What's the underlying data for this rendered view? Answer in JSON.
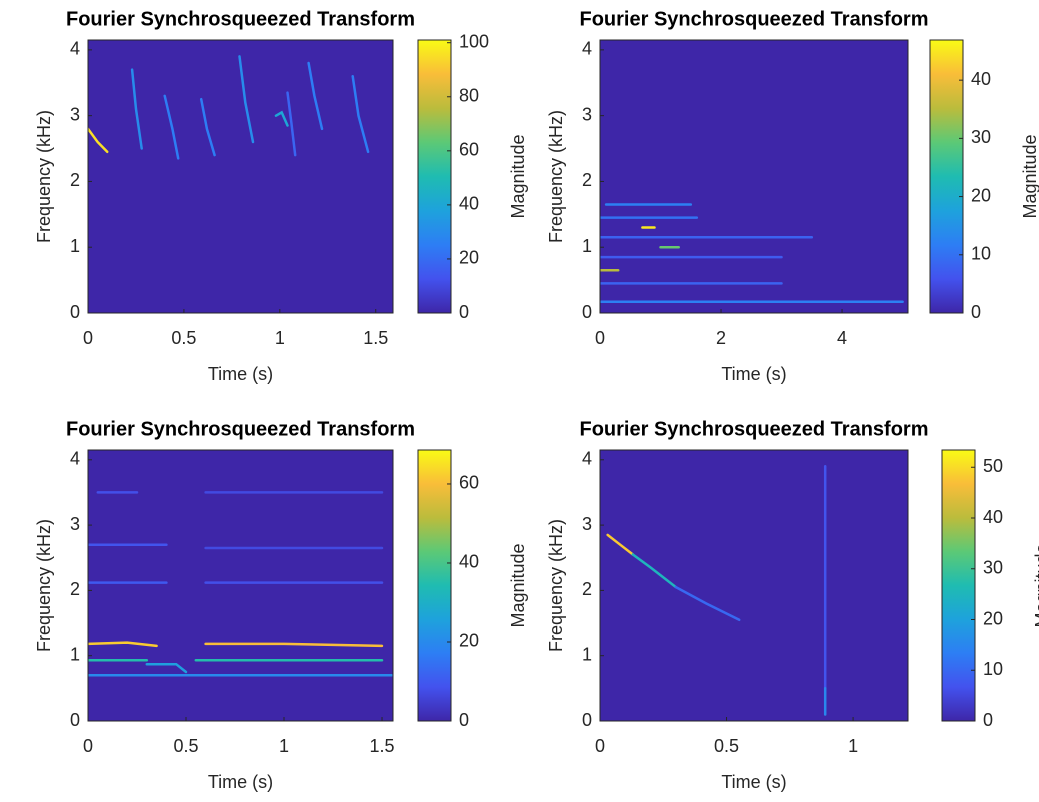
{
  "chart_data": [
    {
      "type": "spectrogram",
      "title": "Fourier Synchrosqueezed Transform",
      "xlabel": "Time (s)",
      "ylabel": "Frequency (kHz)",
      "clabel": "Magnitude",
      "xlim": [
        0,
        1.59
      ],
      "xticks": [
        0,
        0.5,
        1,
        1.5
      ],
      "ylim": [
        0,
        4.15
      ],
      "yticks": [
        0,
        1,
        2,
        3,
        4
      ],
      "clim": [
        0,
        101
      ],
      "cticks": [
        0,
        20,
        40,
        60,
        80,
        100
      ],
      "colormap": [
        "#3e26a8",
        "#4352ee",
        "#2d7ef4",
        "#1ea2dc",
        "#1fbcb1",
        "#5cc976",
        "#bbbc3c",
        "#f9bd39",
        "#f9fb15"
      ],
      "ridges": [
        {
          "x": [
            0,
            0.05,
            0.1
          ],
          "y": [
            2.8,
            2.6,
            2.45
          ],
          "magnitude": 95
        },
        {
          "x": [
            0.23,
            0.25,
            0.28
          ],
          "y": [
            3.7,
            3.1,
            2.5
          ],
          "magnitude": 30
        },
        {
          "x": [
            0.4,
            0.44,
            0.47
          ],
          "y": [
            3.3,
            2.8,
            2.35
          ],
          "magnitude": 25
        },
        {
          "x": [
            0.59,
            0.62,
            0.66
          ],
          "y": [
            3.25,
            2.8,
            2.4
          ],
          "magnitude": 25
        },
        {
          "x": [
            0.79,
            0.82,
            0.86
          ],
          "y": [
            3.9,
            3.2,
            2.6
          ],
          "magnitude": 30
        },
        {
          "x": [
            0.98,
            1.01,
            1.04
          ],
          "y": [
            3.0,
            3.05,
            2.85
          ],
          "magnitude": 40
        },
        {
          "x": [
            1.04,
            1.06,
            1.08
          ],
          "y": [
            3.35,
            2.9,
            2.4
          ],
          "magnitude": 18
        },
        {
          "x": [
            1.15,
            1.18,
            1.22
          ],
          "y": [
            3.8,
            3.3,
            2.8
          ],
          "magnitude": 25
        },
        {
          "x": [
            1.38,
            1.41,
            1.46
          ],
          "y": [
            3.6,
            3.0,
            2.45
          ],
          "magnitude": 25
        }
      ]
    },
    {
      "type": "spectrogram",
      "title": "Fourier Synchrosqueezed Transform",
      "xlabel": "Time (s)",
      "ylabel": "Frequency (kHz)",
      "clabel": "Magnitude",
      "xlim": [
        0,
        5.09
      ],
      "xticks": [
        0,
        2,
        4
      ],
      "ylim": [
        0,
        4.15
      ],
      "yticks": [
        0,
        1,
        2,
        3,
        4
      ],
      "clim": [
        0,
        46.9
      ],
      "cticks": [
        0,
        10,
        20,
        30,
        40
      ],
      "colormap": [
        "#3e26a8",
        "#4352ee",
        "#2d7ef4",
        "#1ea2dc",
        "#1fbcb1",
        "#5cc976",
        "#bbbc3c",
        "#f9bd39",
        "#f9fb15"
      ],
      "ridges": [
        {
          "x": [
            0,
            2.5,
            5
          ],
          "y": [
            0.17,
            0.17,
            0.17
          ],
          "magnitude": 12
        },
        {
          "x": [
            0,
            1.5,
            3
          ],
          "y": [
            0.45,
            0.45,
            0.45
          ],
          "magnitude": 8
        },
        {
          "x": [
            0,
            0.15,
            0.3
          ],
          "y": [
            0.65,
            0.65,
            0.65
          ],
          "magnitude": 35
        },
        {
          "x": [
            0,
            1.2,
            3
          ],
          "y": [
            0.85,
            0.85,
            0.85
          ],
          "magnitude": 7
        },
        {
          "x": [
            1.0,
            1.15,
            1.3
          ],
          "y": [
            1.0,
            1.0,
            1.0
          ],
          "magnitude": 30
        },
        {
          "x": [
            0.7,
            0.8,
            0.9
          ],
          "y": [
            1.3,
            1.3,
            1.3
          ],
          "magnitude": 45
        },
        {
          "x": [
            0,
            0.8,
            1.6
          ],
          "y": [
            1.45,
            1.45,
            1.45
          ],
          "magnitude": 10
        },
        {
          "x": [
            0.1,
            0.8,
            1.5
          ],
          "y": [
            1.65,
            1.65,
            1.65
          ],
          "magnitude": 12
        },
        {
          "x": [
            0,
            1.5,
            3.5
          ],
          "y": [
            1.15,
            1.15,
            1.15
          ],
          "magnitude": 8
        }
      ]
    },
    {
      "type": "spectrogram",
      "title": "Fourier Synchrosqueezed Transform",
      "xlabel": "Time (s)",
      "ylabel": "Frequency (kHz)",
      "clabel": "Magnitude",
      "xlim": [
        0,
        1.556
      ],
      "xticks": [
        0,
        0.5,
        1,
        1.5
      ],
      "ylim": [
        0,
        4.15
      ],
      "yticks": [
        0,
        1,
        2,
        3,
        4
      ],
      "clim": [
        0,
        68.6
      ],
      "cticks": [
        0,
        20,
        40,
        60
      ],
      "colormap": [
        "#3e26a8",
        "#4352ee",
        "#2d7ef4",
        "#1ea2dc",
        "#1fbcb1",
        "#5cc976",
        "#bbbc3c",
        "#f9bd39",
        "#f9fb15"
      ],
      "ridges": [
        {
          "x": [
            0,
            0.2,
            0.35
          ],
          "y": [
            1.18,
            1.2,
            1.15
          ],
          "magnitude": 62
        },
        {
          "x": [
            0.6,
            1.0,
            1.5
          ],
          "y": [
            1.18,
            1.18,
            1.15
          ],
          "magnitude": 60
        },
        {
          "x": [
            0,
            0.15,
            0.3
          ],
          "y": [
            0.93,
            0.93,
            0.93
          ],
          "magnitude": 35
        },
        {
          "x": [
            0.3,
            0.45,
            0.5
          ],
          "y": [
            0.87,
            0.87,
            0.75
          ],
          "magnitude": 25
        },
        {
          "x": [
            0.55,
            1.0,
            1.5
          ],
          "y": [
            0.93,
            0.93,
            0.93
          ],
          "magnitude": 35
        },
        {
          "x": [
            0,
            0.75,
            1.55
          ],
          "y": [
            0.7,
            0.7,
            0.7
          ],
          "magnitude": 20
        },
        {
          "x": [
            0,
            0.2,
            0.4
          ],
          "y": [
            2.12,
            2.12,
            2.12
          ],
          "magnitude": 10
        },
        {
          "x": [
            0.6,
            1.0,
            1.5
          ],
          "y": [
            2.12,
            2.12,
            2.12
          ],
          "magnitude": 8
        },
        {
          "x": [
            0,
            0.2,
            0.4
          ],
          "y": [
            2.7,
            2.7,
            2.7
          ],
          "magnitude": 9
        },
        {
          "x": [
            0.6,
            1.0,
            1.5
          ],
          "y": [
            2.65,
            2.65,
            2.65
          ],
          "magnitude": 7
        },
        {
          "x": [
            0.05,
            0.15,
            0.25
          ],
          "y": [
            3.5,
            3.5,
            3.5
          ],
          "magnitude": 8
        },
        {
          "x": [
            0.6,
            1.0,
            1.5
          ],
          "y": [
            3.5,
            3.5,
            3.5
          ],
          "magnitude": 7
        }
      ]
    },
    {
      "type": "spectrogram",
      "title": "Fourier Synchrosqueezed Transform",
      "xlabel": "Time (s)",
      "ylabel": "Frequency (kHz)",
      "clabel": "Magnitude",
      "xlim": [
        0,
        1.217
      ],
      "xticks": [
        0,
        0.5,
        1
      ],
      "ylim": [
        0,
        4.15
      ],
      "yticks": [
        0,
        1,
        2,
        3,
        4
      ],
      "clim": [
        0,
        53.4
      ],
      "cticks": [
        0,
        10,
        20,
        30,
        40,
        50
      ],
      "colormap": [
        "#3e26a8",
        "#4352ee",
        "#2d7ef4",
        "#1ea2dc",
        "#1fbcb1",
        "#5cc976",
        "#bbbc3c",
        "#f9bd39",
        "#f9fb15"
      ],
      "ridges": [
        {
          "x": [
            0.03,
            0.08,
            0.13
          ],
          "y": [
            2.85,
            2.7,
            2.55
          ],
          "magnitude": 48
        },
        {
          "x": [
            0.13,
            0.2,
            0.3
          ],
          "y": [
            2.55,
            2.35,
            2.05
          ],
          "magnitude": 25
        },
        {
          "x": [
            0.3,
            0.42,
            0.55
          ],
          "y": [
            2.05,
            1.8,
            1.55
          ],
          "magnitude": 10
        },
        {
          "x": [
            0.89,
            0.89,
            0.89
          ],
          "y": [
            3.9,
            2.0,
            0.5
          ],
          "magnitude": 7
        },
        {
          "x": [
            0.89,
            0.89,
            0.89
          ],
          "y": [
            0.5,
            0.3,
            0.1
          ],
          "magnitude": 15
        }
      ]
    }
  ]
}
